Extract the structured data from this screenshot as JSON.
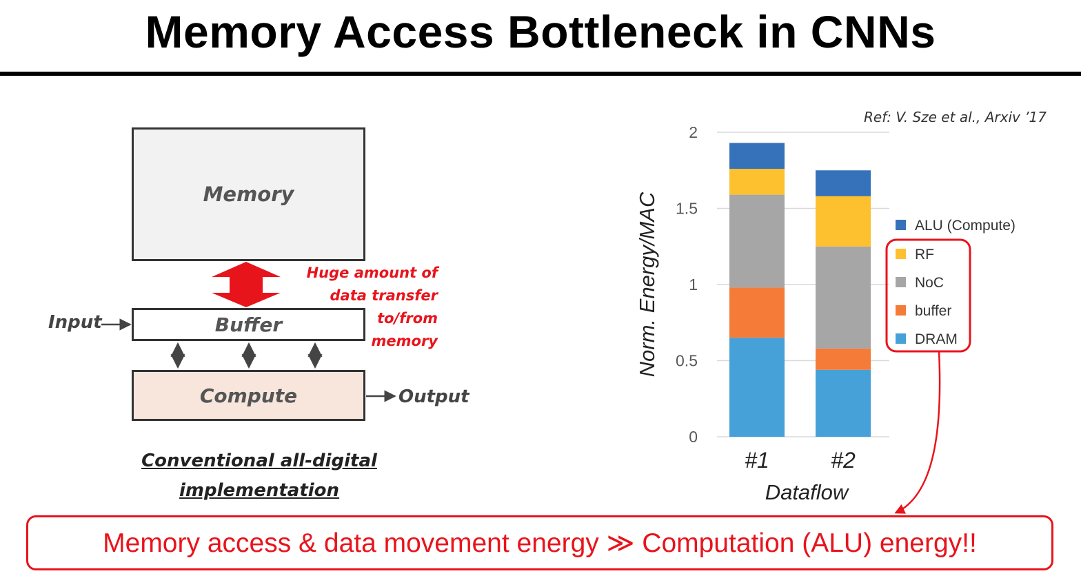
{
  "title": "Memory Access Bottleneck in CNNs",
  "diagram": {
    "memory_label": "Memory",
    "buffer_label": "Buffer",
    "compute_label": "Compute",
    "input_label": "Input",
    "output_label": "Output",
    "transfer_note_lines": [
      "Huge amount of",
      "data transfer",
      "to/from",
      "memory"
    ],
    "caption_lines": [
      "Conventional all-digital",
      "implementation"
    ]
  },
  "reference": "Ref: V. Sze et al., Arxiv ’17",
  "conclusion": "Memory access & data movement energy ≫ Computation (ALU) energy!!",
  "colors": {
    "ALU (Compute)": "#3672b9",
    "RF": "#fdc02f",
    "NoC": "#a6a6a6",
    "buffer": "#f47b38",
    "DRAM": "#45a1d8",
    "accent_red": "#e8141c"
  },
  "chart_data": {
    "type": "bar",
    "stacked": true,
    "categories": [
      "#1",
      "#2"
    ],
    "series": [
      {
        "name": "DRAM",
        "values": [
          0.65,
          0.44
        ]
      },
      {
        "name": "buffer",
        "values": [
          0.33,
          0.14
        ]
      },
      {
        "name": "NoC",
        "values": [
          0.61,
          0.67
        ]
      },
      {
        "name": "RF",
        "values": [
          0.17,
          0.33
        ]
      },
      {
        "name": "ALU (Compute)",
        "values": [
          0.17,
          0.17
        ]
      }
    ],
    "legend_order": [
      "ALU (Compute)",
      "RF",
      "NoC",
      "buffer",
      "DRAM"
    ],
    "title": "",
    "xlabel": "Dataflow",
    "ylabel": "Norm. Energy/MAC",
    "ylim": [
      0,
      2
    ],
    "yticks": [
      "0",
      "0.5",
      "1",
      "1.5",
      "2"
    ],
    "legend_position": "right"
  }
}
